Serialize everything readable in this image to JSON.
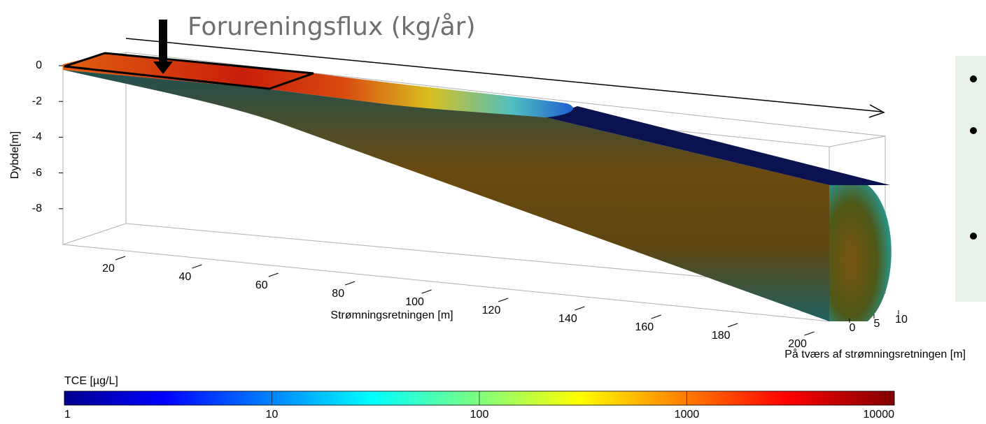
{
  "title": "Forureningsflux (kg/år)",
  "axes": {
    "z": {
      "label": "Dybde[m]",
      "ticks": [
        0,
        -2,
        -4,
        -6,
        -8
      ]
    },
    "x": {
      "label": "Strømningsretningen [m]",
      "ticks": [
        20,
        40,
        60,
        80,
        100,
        120,
        140,
        160,
        180,
        200
      ]
    },
    "y": {
      "label": "På tværs af strømningsretningen [m]",
      "ticks": [
        0,
        5,
        10
      ]
    }
  },
  "colorbar": {
    "label": "TCE [µg/L]",
    "scale": "log",
    "ticks": [
      1,
      10,
      100,
      1000,
      10000
    ]
  }
}
